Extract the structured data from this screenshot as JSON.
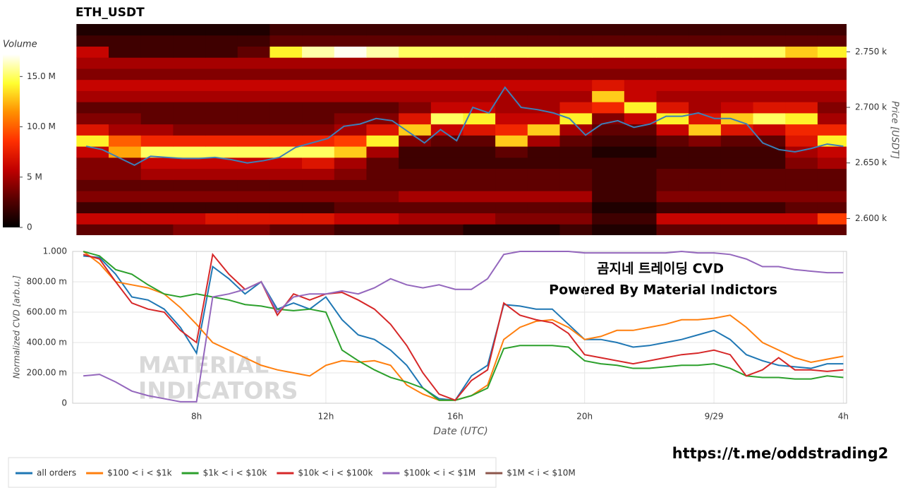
{
  "chart_data": [
    {
      "type": "heatmap",
      "title": "ETH_USDT",
      "ylabel": "Price [USDT]",
      "xlim": [
        4.17,
        28.1
      ],
      "ylim": [
        2585,
        2775
      ],
      "yticks": [
        {
          "value": 2600,
          "label": "2.600 k"
        },
        {
          "value": 2650,
          "label": "2.650 k"
        },
        {
          "value": 2700,
          "label": "2.700 k"
        },
        {
          "value": 2750,
          "label": "2.750 k"
        }
      ],
      "x_edges": [
        4.2,
        5.2,
        6.2,
        7.2,
        8.2,
        9.2,
        10.2,
        11.2,
        12.2,
        13.2,
        14.2,
        15.2,
        16.2,
        17.2,
        18.2,
        19.2,
        20.2,
        21.2,
        22.2,
        23.2,
        24.2,
        25.2,
        26.2,
        27.2,
        28.1
      ],
      "y_edges": [
        2585,
        2595,
        2605,
        2615,
        2625,
        2635,
        2645,
        2655,
        2665,
        2675,
        2685,
        2695,
        2705,
        2715,
        2725,
        2735,
        2745,
        2755,
        2765,
        2775
      ],
      "z": [
        [
          3,
          3,
          3,
          4,
          4,
          4,
          3,
          3,
          2,
          2,
          2,
          2,
          1,
          1,
          1,
          2,
          1,
          1,
          3,
          3,
          3,
          3,
          3,
          3
        ],
        [
          6,
          6,
          6,
          6,
          7,
          7,
          7,
          7,
          6,
          6,
          5,
          5,
          5,
          4,
          4,
          4,
          2,
          2,
          6,
          6,
          6,
          6,
          6,
          9
        ],
        [
          2,
          2,
          2,
          2,
          2,
          2,
          2,
          2,
          3,
          3,
          3,
          3,
          3,
          3,
          3,
          3,
          1,
          1,
          2,
          2,
          2,
          2,
          3,
          3
        ],
        [
          4,
          4,
          4,
          4,
          4,
          4,
          4,
          4,
          4,
          4,
          5,
          5,
          5,
          5,
          5,
          5,
          2,
          2,
          4,
          4,
          4,
          4,
          4,
          4
        ],
        [
          3,
          3,
          3,
          3,
          3,
          3,
          3,
          3,
          3,
          3,
          3,
          3,
          3,
          3,
          3,
          3,
          2,
          2,
          3,
          3,
          3,
          3,
          3,
          3
        ],
        [
          4,
          4,
          5,
          5,
          5,
          5,
          5,
          5,
          4,
          3,
          3,
          3,
          3,
          3,
          3,
          3,
          2,
          2,
          3,
          3,
          3,
          3,
          3,
          3
        ],
        [
          4,
          4,
          6,
          6,
          6,
          6,
          6,
          7,
          5,
          3,
          2,
          2,
          2,
          2,
          2,
          2,
          2,
          2,
          2,
          2,
          2,
          2,
          4,
          5
        ],
        [
          6,
          12,
          15,
          15,
          15,
          15,
          15,
          15,
          13,
          5,
          2,
          2,
          2,
          3,
          2,
          2,
          1,
          1,
          2,
          2,
          2,
          2,
          5,
          6
        ],
        [
          14,
          10,
          8,
          8,
          8,
          8,
          8,
          8,
          9,
          14,
          4,
          3,
          3,
          13,
          5,
          3,
          2,
          2,
          3,
          4,
          3,
          3,
          7,
          14
        ],
        [
          7,
          5,
          5,
          4,
          4,
          4,
          4,
          4,
          5,
          7,
          13,
          6,
          7,
          8,
          13,
          5,
          3,
          3,
          6,
          13,
          7,
          6,
          8,
          8
        ],
        [
          4,
          4,
          3,
          3,
          3,
          3,
          3,
          3,
          4,
          4,
          7,
          15,
          14,
          6,
          6,
          14,
          4,
          6,
          14,
          7,
          13,
          15,
          14,
          5
        ],
        [
          3,
          3,
          3,
          3,
          3,
          3,
          3,
          3,
          3,
          3,
          4,
          6,
          6,
          5,
          5,
          7,
          8,
          14,
          7,
          5,
          6,
          7,
          7,
          4
        ],
        [
          5,
          5,
          5,
          5,
          5,
          5,
          5,
          5,
          5,
          5,
          5,
          5,
          5,
          5,
          5,
          5,
          13,
          6,
          5,
          5,
          5,
          5,
          5,
          5
        ],
        [
          6,
          6,
          6,
          6,
          6,
          6,
          6,
          6,
          6,
          6,
          6,
          6,
          6,
          6,
          6,
          6,
          7,
          6,
          6,
          6,
          6,
          6,
          6,
          6
        ],
        [
          4,
          4,
          4,
          4,
          4,
          4,
          4,
          4,
          4,
          4,
          4,
          4,
          4,
          4,
          4,
          4,
          4,
          4,
          4,
          4,
          4,
          4,
          4,
          4
        ],
        [
          5,
          5,
          5,
          5,
          5,
          5,
          5,
          5,
          5,
          5,
          5,
          5,
          5,
          5,
          5,
          5,
          5,
          5,
          5,
          5,
          5,
          5,
          5,
          5
        ],
        [
          6,
          2,
          2,
          2,
          2,
          3,
          14,
          16,
          17,
          16,
          15,
          15,
          15,
          15,
          15,
          15,
          15,
          15,
          15,
          15,
          15,
          15,
          13,
          14
        ],
        [
          2,
          2,
          2,
          2,
          2,
          2,
          3,
          3,
          3,
          3,
          3,
          3,
          3,
          3,
          3,
          3,
          3,
          3,
          3,
          3,
          3,
          3,
          3,
          3
        ],
        [
          1,
          1,
          1,
          1,
          1,
          1,
          2,
          2,
          2,
          2,
          2,
          2,
          2,
          2,
          2,
          2,
          2,
          2,
          2,
          2,
          2,
          2,
          2,
          2
        ]
      ],
      "colorscale": [
        "#000000",
        "#5a0000",
        "#c00000",
        "#ff3000",
        "#ff9000",
        "#ffff30",
        "#ffffff"
      ],
      "colorbar": {
        "title": "Volume",
        "lim": [
          0,
          17.2
        ],
        "ticks": [
          0,
          {
            "value": 5,
            "label": "5 M"
          },
          {
            "value": 10,
            "label": "10.0 M"
          },
          {
            "value": 15,
            "label": "15.0 M"
          }
        ]
      },
      "price": {
        "color": "#3d7fb8",
        "x": [
          4.5,
          5,
          5.5,
          6,
          6.5,
          7,
          7.5,
          8,
          8.5,
          9,
          9.5,
          10,
          10.5,
          11,
          11.5,
          12,
          12.5,
          13,
          13.5,
          14,
          14.5,
          15,
          15.5,
          16,
          16.5,
          17,
          17.5,
          18,
          18.5,
          19,
          19.5,
          20,
          20.5,
          21,
          21.5,
          22,
          22.5,
          23,
          23.5,
          24,
          24.5,
          25,
          25.5,
          26,
          26.5,
          27,
          27.5,
          28
        ],
        "values": [
          2665,
          2662,
          2655,
          2648,
          2656,
          2655,
          2654,
          2654,
          2655,
          2653,
          2650,
          2652,
          2655,
          2664,
          2668,
          2672,
          2683,
          2685,
          2690,
          2688,
          2678,
          2668,
          2680,
          2670,
          2700,
          2695,
          2718,
          2700,
          2698,
          2695,
          2690,
          2675,
          2685,
          2688,
          2682,
          2685,
          2692,
          2692,
          2695,
          2690,
          2690,
          2685,
          2668,
          2662,
          2660,
          2663,
          2667,
          2665
        ]
      }
    },
    {
      "type": "line",
      "xlabel": "Date (UTC)",
      "ylabel": "Normalized CVD [arb.u.]",
      "xlim": [
        4.17,
        28.1
      ],
      "ylim": [
        0,
        1
      ],
      "xticks": [
        {
          "value": 8,
          "label": "8h"
        },
        {
          "value": 12,
          "label": "12h"
        },
        {
          "value": 16,
          "label": "16h"
        },
        {
          "value": 20,
          "label": "20h"
        },
        {
          "value": 24,
          "label": "9/29"
        },
        {
          "value": 28,
          "label": "4h"
        }
      ],
      "yticks": [
        0,
        {
          "value": 0.2,
          "label": "200.00 m"
        },
        {
          "value": 0.4,
          "label": "400.00 m"
        },
        {
          "value": 0.6,
          "label": "600.00 m"
        },
        {
          "value": 0.8,
          "label": "800.00 m"
        },
        {
          "value": 1,
          "label": "1.000"
        }
      ],
      "grid": true,
      "legend": "bottom-left",
      "annotations": [
        "곰지네 트레이딩 CVD",
        "Powered By Material Indictors"
      ],
      "x": [
        4.5,
        5,
        5.5,
        6,
        6.5,
        7,
        7.5,
        8,
        8.5,
        9,
        9.5,
        10,
        10.5,
        11,
        11.5,
        12,
        12.5,
        13,
        13.5,
        14,
        14.5,
        15,
        15.5,
        16,
        16.5,
        17,
        17.5,
        18,
        18.5,
        19,
        19.5,
        20,
        20.5,
        21,
        21.5,
        22,
        22.5,
        23,
        23.5,
        24,
        24.5,
        25,
        25.5,
        26,
        26.5,
        27,
        27.5,
        28
      ],
      "series": [
        {
          "name": "all orders",
          "color": "#1f77b4",
          "values": [
            0.97,
            0.96,
            0.85,
            0.7,
            0.68,
            0.62,
            0.5,
            0.33,
            0.9,
            0.82,
            0.72,
            0.8,
            0.62,
            0.66,
            0.62,
            0.7,
            0.55,
            0.45,
            0.42,
            0.35,
            0.25,
            0.1,
            0.03,
            0.02,
            0.18,
            0.25,
            0.65,
            0.64,
            0.62,
            0.62,
            0.52,
            0.42,
            0.42,
            0.4,
            0.37,
            0.38,
            0.4,
            0.42,
            0.45,
            0.48,
            0.42,
            0.32,
            0.28,
            0.25,
            0.24,
            0.23,
            0.26,
            0.26
          ]
        },
        {
          "name": "$100 < i < $1k",
          "color": "#ff7f0e",
          "values": [
            1.0,
            0.92,
            0.8,
            0.78,
            0.76,
            0.72,
            0.63,
            0.52,
            0.4,
            0.35,
            0.3,
            0.25,
            0.22,
            0.2,
            0.18,
            0.25,
            0.28,
            0.27,
            0.28,
            0.25,
            0.12,
            0.06,
            0.02,
            0.02,
            0.05,
            0.12,
            0.42,
            0.5,
            0.54,
            0.55,
            0.5,
            0.42,
            0.44,
            0.48,
            0.48,
            0.5,
            0.52,
            0.55,
            0.55,
            0.56,
            0.58,
            0.5,
            0.4,
            0.35,
            0.3,
            0.27,
            0.29,
            0.31
          ]
        },
        {
          "name": "$1k < i < $10k",
          "color": "#2ca02c",
          "values": [
            1.0,
            0.97,
            0.88,
            0.85,
            0.78,
            0.72,
            0.7,
            0.72,
            0.7,
            0.68,
            0.65,
            0.64,
            0.62,
            0.61,
            0.62,
            0.6,
            0.35,
            0.28,
            0.22,
            0.17,
            0.14,
            0.1,
            0.02,
            0.02,
            0.05,
            0.1,
            0.36,
            0.38,
            0.38,
            0.38,
            0.37,
            0.28,
            0.26,
            0.25,
            0.23,
            0.23,
            0.24,
            0.25,
            0.25,
            0.26,
            0.23,
            0.18,
            0.17,
            0.17,
            0.16,
            0.16,
            0.18,
            0.17
          ]
        },
        {
          "name": "$10k < i < $100k",
          "color": "#d62728",
          "values": [
            0.98,
            0.95,
            0.8,
            0.66,
            0.62,
            0.6,
            0.48,
            0.4,
            0.98,
            0.85,
            0.75,
            0.8,
            0.58,
            0.72,
            0.68,
            0.72,
            0.73,
            0.68,
            0.62,
            0.52,
            0.38,
            0.2,
            0.06,
            0.02,
            0.15,
            0.22,
            0.66,
            0.58,
            0.55,
            0.53,
            0.46,
            0.32,
            0.3,
            0.28,
            0.26,
            0.28,
            0.3,
            0.32,
            0.33,
            0.35,
            0.32,
            0.18,
            0.22,
            0.3,
            0.22,
            0.22,
            0.21,
            0.22
          ]
        },
        {
          "name": "$100k < i < $1M",
          "color": "#9467bd",
          "values": [
            0.18,
            0.19,
            0.14,
            0.08,
            0.05,
            0.03,
            0.01,
            0.01,
            0.7,
            0.72,
            0.75,
            0.8,
            0.6,
            0.7,
            0.72,
            0.72,
            0.74,
            0.72,
            0.76,
            0.82,
            0.78,
            0.76,
            0.78,
            0.75,
            0.75,
            0.82,
            0.98,
            1.0,
            1.0,
            1.0,
            1.0,
            0.99,
            0.99,
            0.99,
            0.99,
            0.99,
            0.99,
            1.0,
            0.99,
            0.99,
            0.98,
            0.95,
            0.9,
            0.9,
            0.88,
            0.87,
            0.86,
            0.86
          ]
        },
        {
          "name": "$1M < i < $10M",
          "color": "#8c564b",
          "values": [
            null,
            null,
            null,
            null,
            null,
            null,
            null,
            null,
            null,
            null,
            null,
            null,
            null,
            null,
            null,
            null,
            null,
            null,
            null,
            null,
            null,
            null,
            null,
            null,
            null,
            null,
            null,
            null,
            null,
            null,
            null,
            null,
            null,
            null,
            null,
            null,
            null,
            null,
            null,
            null,
            null,
            null,
            null,
            null,
            null,
            null,
            null,
            null
          ]
        }
      ]
    }
  ],
  "watermark": [
    "MATERIAL",
    "INDICATORS"
  ],
  "link": "https://t.me/oddstrading2"
}
